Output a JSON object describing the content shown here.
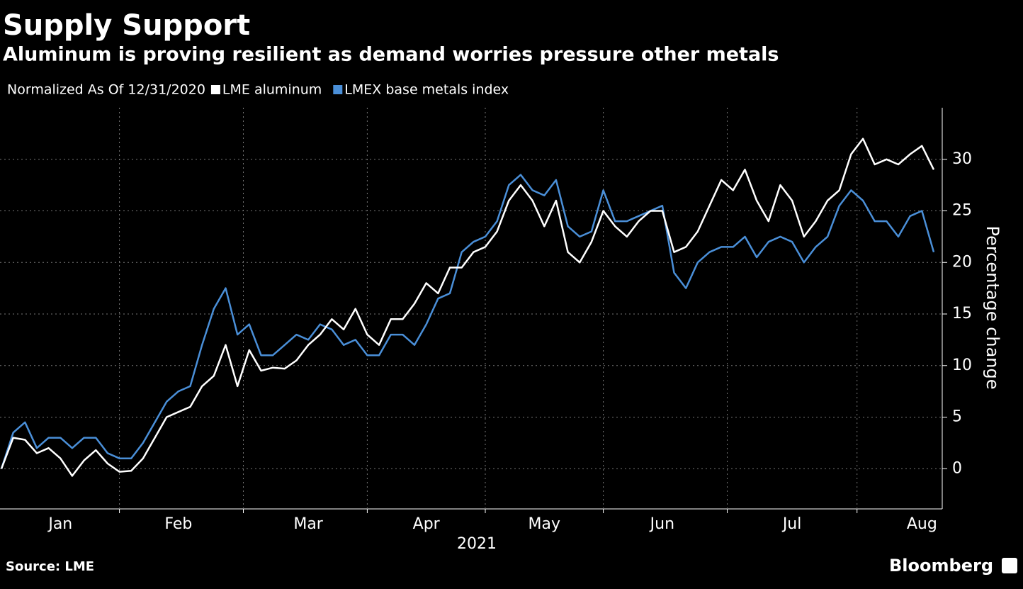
{
  "chart_data": {
    "type": "line",
    "title": "Supply Support",
    "subtitle": "Aluminum is proving resilient as demand worries pressure other metals",
    "legend_title": "Normalized As Of 12/31/2020",
    "ylabel": "Percentage change",
    "xlabel": "2021",
    "source": "Source: LME",
    "brand": "Bloomberg",
    "categories": [
      null,
      null,
      null,
      null,
      null,
      "Jan",
      null,
      null,
      null,
      null,
      null,
      null,
      null,
      null,
      null,
      "Feb",
      null,
      null,
      null,
      null,
      null,
      null,
      null,
      null,
      null,
      null,
      "Mar",
      null,
      null,
      null,
      null,
      null,
      null,
      null,
      null,
      null,
      "Apr",
      null,
      null,
      null,
      null,
      null,
      null,
      null,
      null,
      null,
      "May",
      null,
      null,
      null,
      null,
      null,
      null,
      null,
      null,
      null,
      "Jun",
      null,
      null,
      null,
      null,
      null,
      null,
      null,
      null,
      null,
      null,
      "Jul",
      null,
      null,
      null,
      null,
      null,
      null,
      null,
      null,
      null,
      null,
      "Aug",
      null
    ],
    "series": [
      {
        "name": "LME aluminum",
        "color": "#ffffff",
        "values": [
          0,
          3,
          2.8,
          1.5,
          2,
          1,
          -0.7,
          0.8,
          1.8,
          0.5,
          -0.3,
          -0.2,
          1,
          3,
          5,
          5.5,
          6,
          8,
          9,
          12,
          8,
          11.5,
          9.5,
          9.8,
          9.7,
          10.5,
          12,
          13,
          14.5,
          13.5,
          15.5,
          13,
          12,
          14.5,
          14.5,
          16,
          18,
          17,
          19.5,
          19.5,
          21,
          21.5,
          23,
          26,
          27.5,
          26,
          23.5,
          26,
          21,
          20,
          22,
          25,
          23.5,
          22.5,
          24,
          25,
          25,
          21,
          21.5,
          23,
          25.5,
          28,
          27,
          29,
          26,
          24,
          27.5,
          26,
          22.5,
          24,
          26,
          27,
          30.5,
          32,
          29.5,
          30,
          29.5,
          30.5,
          31.3,
          29
        ]
      },
      {
        "name": "LMEX base metals index",
        "color": "#4a8fd8",
        "values": [
          0,
          3.5,
          4.5,
          2,
          3,
          3,
          2,
          3,
          3,
          1.5,
          1,
          1,
          2.5,
          4.5,
          6.5,
          7.5,
          8,
          12,
          15.5,
          17.5,
          13,
          14,
          11,
          11,
          12,
          13,
          12.5,
          14,
          13.5,
          12,
          12.5,
          11,
          11,
          13,
          13,
          12,
          14,
          16.5,
          17,
          21,
          22,
          22.5,
          24,
          27.5,
          28.5,
          27,
          26.5,
          28,
          23.5,
          22.5,
          23,
          27,
          24,
          24,
          24.5,
          25,
          25.5,
          19,
          17.5,
          20,
          21,
          21.5,
          21.5,
          22.5,
          20.5,
          22,
          22.5,
          22,
          20,
          21.5,
          22.5,
          25.5,
          27,
          26,
          24,
          24,
          22.5,
          24.5,
          25,
          21
        ]
      }
    ],
    "ylim": [
      -3.9,
      35
    ],
    "yticks": [
      0,
      5,
      10,
      15,
      20,
      25,
      30
    ],
    "grid": true
  }
}
